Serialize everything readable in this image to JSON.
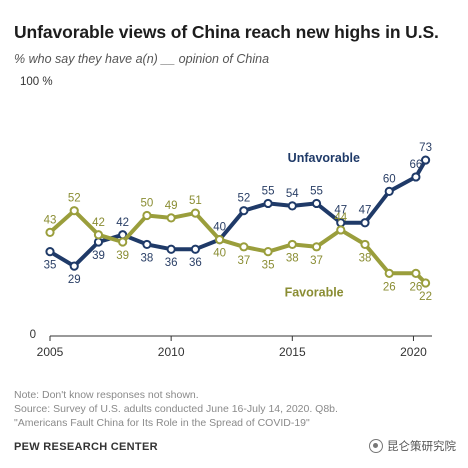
{
  "chart_data": {
    "type": "line",
    "title": "Unfavorable views of China reach new highs in U.S.",
    "subtitle": "% who say they have a(n) __ opinion of China",
    "y_top_label": "100 %",
    "y_bottom_label": "0",
    "ylim": [
      0,
      100
    ],
    "xlim": [
      2005,
      2020.6
    ],
    "x_ticks": [
      2005,
      2010,
      2015,
      2020
    ],
    "x_tick_labels": [
      "2005",
      "2010",
      "2015",
      "2020"
    ],
    "x": [
      2005,
      2006,
      2007,
      2008,
      2009,
      2010,
      2011,
      2012,
      2013,
      2014,
      2015,
      2016,
      2017,
      2018,
      2019,
      2020.1,
      2020.5
    ],
    "series": [
      {
        "name": "Unfavorable",
        "color": "#1f3a68",
        "values": [
          35,
          29,
          39,
          42,
          38,
          36,
          36,
          40,
          52,
          55,
          54,
          55,
          47,
          47,
          60,
          66,
          73
        ],
        "labels": [
          "35",
          "29",
          "39",
          "42",
          "38",
          "36",
          "36",
          "40",
          "52",
          "55",
          "54",
          "55",
          "47",
          "47",
          "60",
          "66",
          "73"
        ]
      },
      {
        "name": "Favorable",
        "color": "#9a9e3c",
        "values": [
          43,
          52,
          42,
          39,
          50,
          49,
          51,
          40,
          37,
          35,
          38,
          37,
          44,
          38,
          26,
          26,
          22
        ],
        "labels": [
          "43",
          "52",
          "42",
          "39",
          "50",
          "49",
          "51",
          "40",
          "37",
          "35",
          "38",
          "37",
          "44",
          "38",
          "26",
          "26",
          "22"
        ]
      }
    ],
    "legend_placement": "inline labels"
  },
  "footer": {
    "note": "Note: Don't know responses not shown.",
    "source": "Source: Survey of U.S. adults conducted June 16-July 14, 2020. Q8b.",
    "source_title": "\"Americans Fault China for Its Role in the Spread of COVID-19\"",
    "org": "PEW RESEARCH CENTER",
    "watermark": "昆仑策研究院"
  }
}
